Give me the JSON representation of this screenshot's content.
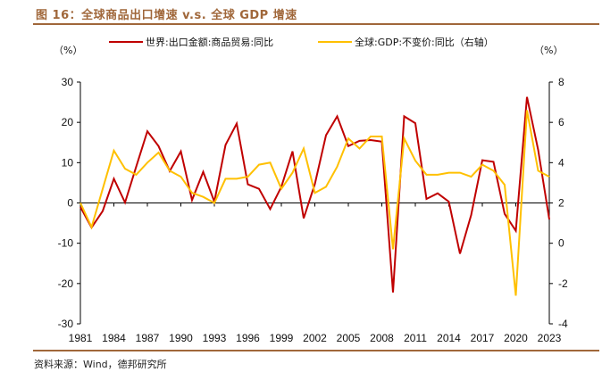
{
  "header": {
    "title": "图 16：全球商品出口增速 v.s. 全球 GDP 增速"
  },
  "footer": {
    "source": "资料来源：Wind，德邦研究所"
  },
  "colors": {
    "accent_brown": "#a0673a",
    "series_red": "#c00000",
    "series_yellow": "#ffc000",
    "axis": "#000000"
  },
  "chart_data": {
    "type": "line",
    "title": "全球商品出口增速 v.s. 全球 GDP 增速",
    "left_unit_label": "（%）",
    "right_unit_label": "（%）",
    "x": [
      1981,
      1982,
      1983,
      1984,
      1985,
      1986,
      1987,
      1988,
      1989,
      1990,
      1991,
      1992,
      1993,
      1994,
      1995,
      1996,
      1997,
      1998,
      1999,
      2000,
      2001,
      2002,
      2003,
      2004,
      2005,
      2006,
      2007,
      2008,
      2009,
      2010,
      2011,
      2012,
      2013,
      2014,
      2015,
      2016,
      2017,
      2018,
      2019,
      2020,
      2021,
      2022,
      2023
    ],
    "x_tick_labels": [
      "1981",
      "1984",
      "1987",
      "1990",
      "1993",
      "1996",
      "1999",
      "2002",
      "2005",
      "2008",
      "2011",
      "2014",
      "2017",
      "2020",
      "2023"
    ],
    "y_left": {
      "range": [
        -30,
        30
      ],
      "ticks": [
        30,
        20,
        10,
        0,
        -10,
        -20,
        -30
      ]
    },
    "y_right": {
      "range": [
        -4,
        8
      ],
      "ticks": [
        8,
        6,
        4,
        2,
        0,
        -2,
        -4
      ]
    },
    "legend_position": "top",
    "series": [
      {
        "name": "世界:出口金额:商品贸易:同比",
        "axis": "left",
        "color": "#c00000",
        "values": [
          -1.0,
          -6.1,
          -2.0,
          6.0,
          0.1,
          9.0,
          17.8,
          14.1,
          7.9,
          12.8,
          0.7,
          7.7,
          0.3,
          14.4,
          19.7,
          4.6,
          3.5,
          -1.5,
          4.0,
          12.8,
          -3.8,
          4.7,
          16.8,
          21.5,
          14.1,
          15.4,
          15.6,
          15.2,
          -22.2,
          21.5,
          19.8,
          1.0,
          2.4,
          0.3,
          -12.6,
          -3.0,
          10.6,
          10.2,
          -2.7,
          -6.9,
          26.3,
          13.2,
          -4.1
        ]
      },
      {
        "name": "全球:GDP:不变价:同比（右轴）",
        "axis": "right",
        "color": "#ffc000",
        "values": [
          2.0,
          0.8,
          2.7,
          4.6,
          3.7,
          3.4,
          4.0,
          4.5,
          3.6,
          3.3,
          2.5,
          2.3,
          2.0,
          3.2,
          3.2,
          3.3,
          3.9,
          4.0,
          2.7,
          3.5,
          4.7,
          2.5,
          2.8,
          3.8,
          5.2,
          4.7,
          5.3,
          5.3,
          -0.3,
          5.2,
          4.1,
          3.4,
          3.4,
          3.5,
          3.5,
          3.3,
          3.9,
          3.6,
          2.9,
          -2.6,
          6.6,
          3.6,
          3.3
        ]
      }
    ],
    "xlabel": "",
    "ylabel": "",
    "grid": false
  }
}
